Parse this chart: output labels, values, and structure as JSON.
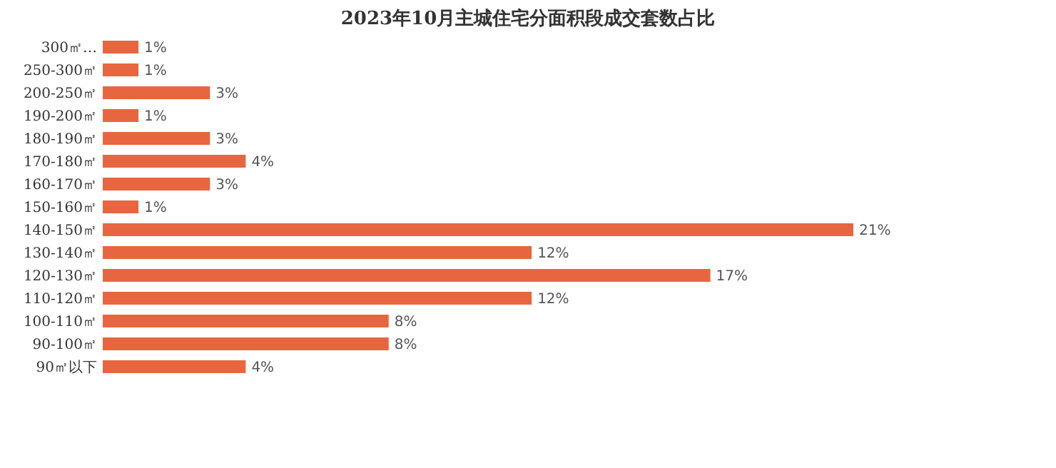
{
  "chart_data": {
    "type": "bar",
    "orientation": "horizontal",
    "title": "2023年10月主城住宅分面积段成交套数占比",
    "categories": [
      "300㎡…",
      "250-300㎡",
      "200-250㎡",
      "190-200㎡",
      "180-190㎡",
      "170-180㎡",
      "160-170㎡",
      "150-160㎡",
      "140-150㎡",
      "130-140㎡",
      "120-130㎡",
      "110-120㎡",
      "100-110㎡",
      "90-100㎡",
      "90㎡以下"
    ],
    "values": [
      1,
      1,
      3,
      1,
      3,
      4,
      3,
      1,
      21,
      12,
      17,
      12,
      8,
      8,
      4
    ],
    "value_labels": [
      "1%",
      "1%",
      "3%",
      "1%",
      "3%",
      "4%",
      "3%",
      "1%",
      "21%",
      "12%",
      "17%",
      "12%",
      "8%",
      "8%",
      "4%"
    ],
    "color": "#e8663f"
  }
}
